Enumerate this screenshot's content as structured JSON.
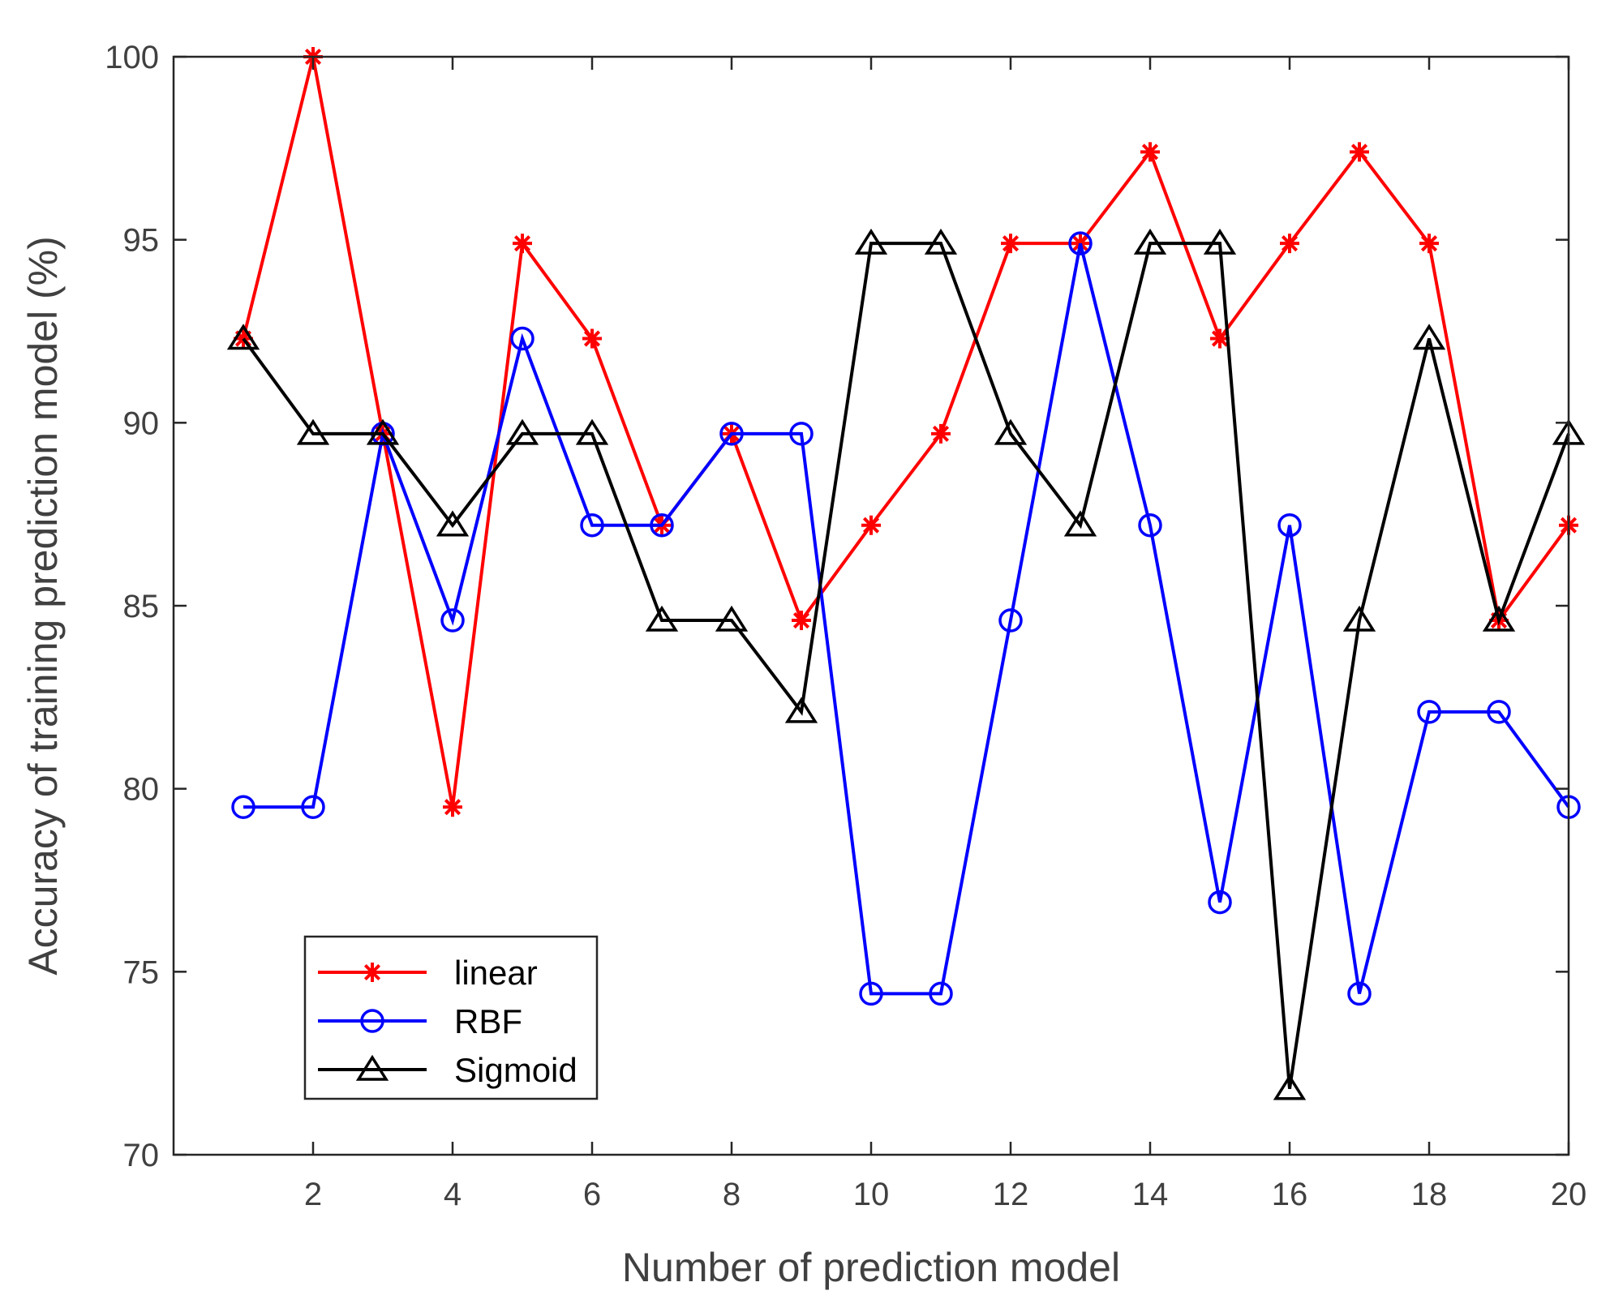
{
  "chart_data": {
    "type": "line",
    "title": "",
    "xlabel": "Number of prediction model",
    "ylabel": "Accuracy of training prediction model  (%)",
    "xlim": [
      0,
      20
    ],
    "ylim": [
      70,
      100
    ],
    "xticks": [
      2,
      4,
      6,
      8,
      10,
      12,
      14,
      16,
      18,
      20
    ],
    "yticks": [
      70,
      75,
      80,
      85,
      90,
      95,
      100
    ],
    "grid": false,
    "legend_position": "bottom-left",
    "x": [
      1,
      2,
      3,
      4,
      5,
      6,
      7,
      8,
      9,
      10,
      11,
      12,
      13,
      14,
      15,
      16,
      17,
      18,
      19,
      20
    ],
    "series": [
      {
        "name": "linear",
        "color": "#ff0000",
        "marker": "asterisk",
        "values": [
          92.3,
          100,
          89.7,
          79.5,
          94.9,
          92.3,
          87.2,
          89.7,
          84.6,
          87.2,
          89.7,
          94.9,
          94.9,
          97.4,
          92.3,
          94.9,
          97.4,
          94.9,
          84.6,
          87.2
        ]
      },
      {
        "name": "RBF",
        "color": "#0000ff",
        "marker": "circle",
        "values": [
          79.5,
          79.5,
          89.7,
          84.6,
          92.3,
          87.2,
          87.2,
          89.7,
          89.7,
          74.4,
          74.4,
          84.6,
          94.9,
          87.2,
          76.9,
          87.2,
          74.4,
          82.1,
          82.1,
          79.5
        ]
      },
      {
        "name": "Sigmoid",
        "color": "#000000",
        "marker": "triangle",
        "values": [
          92.3,
          89.7,
          89.7,
          87.2,
          89.7,
          89.7,
          84.6,
          84.6,
          82.1,
          94.9,
          94.9,
          89.7,
          87.2,
          94.9,
          94.9,
          71.8,
          84.6,
          92.3,
          84.6,
          89.7
        ]
      }
    ]
  }
}
